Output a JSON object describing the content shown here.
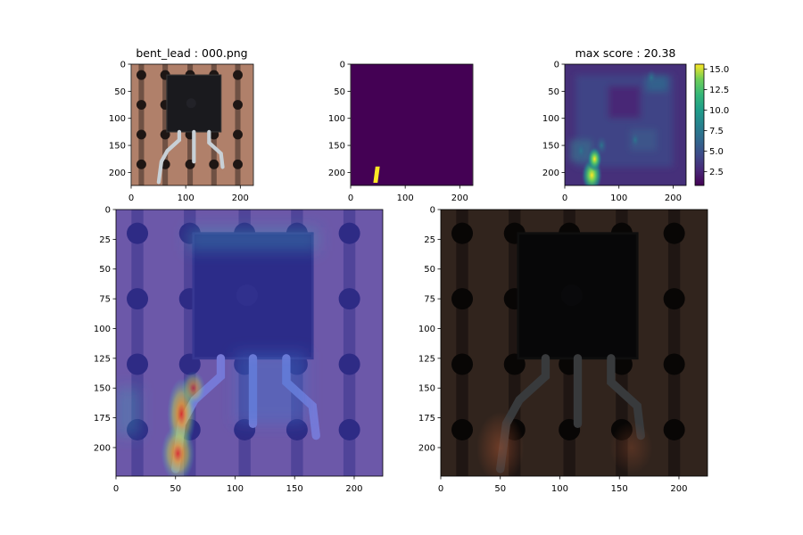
{
  "chart_data": [
    {
      "type": "heatmap",
      "kind": "image",
      "title": "bent_lead : 000.png",
      "xlim": [
        0,
        224
      ],
      "ylim": [
        224,
        0
      ],
      "xticks": [
        0,
        100,
        200
      ],
      "yticks": [
        0,
        50,
        100,
        150,
        200
      ],
      "content": "transistor on perforated copper board, 3 leads, left lead bent"
    },
    {
      "type": "heatmap",
      "kind": "ground-truth-mask",
      "title": "",
      "xlim": [
        0,
        224
      ],
      "ylim": [
        224,
        0
      ],
      "xticks": [
        0,
        100,
        200
      ],
      "yticks": [
        0,
        50,
        100,
        150,
        200
      ],
      "colormap": "viridis",
      "background_color": "#440154",
      "mask_color": "#fde725",
      "mask_region": {
        "x": [
          41,
          53
        ],
        "y": [
          189,
          219
        ]
      }
    },
    {
      "type": "heatmap",
      "kind": "anomaly-score-map",
      "title": "max score : 20.38",
      "xlim": [
        0,
        224
      ],
      "ylim": [
        224,
        0
      ],
      "xticks": [
        0,
        100,
        200
      ],
      "yticks": [
        0,
        50,
        100,
        150,
        200
      ],
      "colormap": "viridis",
      "colorbar": {
        "min": 0.8,
        "max": 15.6,
        "ticks": [
          "2.5",
          "5.0",
          "7.5",
          "10.0",
          "12.5",
          "15.0"
        ],
        "tick_values": [
          2.5,
          5,
          7.5,
          10,
          12.5,
          15
        ]
      },
      "hotspots": [
        {
          "x": 50,
          "y": 205,
          "value": 15.5
        },
        {
          "x": 55,
          "y": 175,
          "value": 9
        },
        {
          "x": 68,
          "y": 150,
          "value": 6
        },
        {
          "x": 30,
          "y": 160,
          "value": 4.5
        },
        {
          "x": 160,
          "y": 25,
          "value": 4
        },
        {
          "x": 130,
          "y": 140,
          "value": 3.5
        }
      ]
    },
    {
      "type": "heatmap",
      "kind": "heatmap-overlay",
      "title": "",
      "xlim": [
        0,
        224
      ],
      "ylim": [
        224,
        0
      ],
      "xticks": [
        0,
        50,
        100,
        150,
        200
      ],
      "yticks": [
        0,
        25,
        50,
        75,
        100,
        125,
        150,
        175,
        200
      ],
      "colormap": "jet"
    },
    {
      "type": "heatmap",
      "kind": "masked-image",
      "title": "",
      "xlim": [
        0,
        224
      ],
      "ylim": [
        224,
        0
      ],
      "xticks": [
        0,
        50,
        100,
        150,
        200
      ],
      "yticks": [
        0,
        25,
        50,
        75,
        100,
        125,
        150,
        175,
        200
      ]
    }
  ]
}
